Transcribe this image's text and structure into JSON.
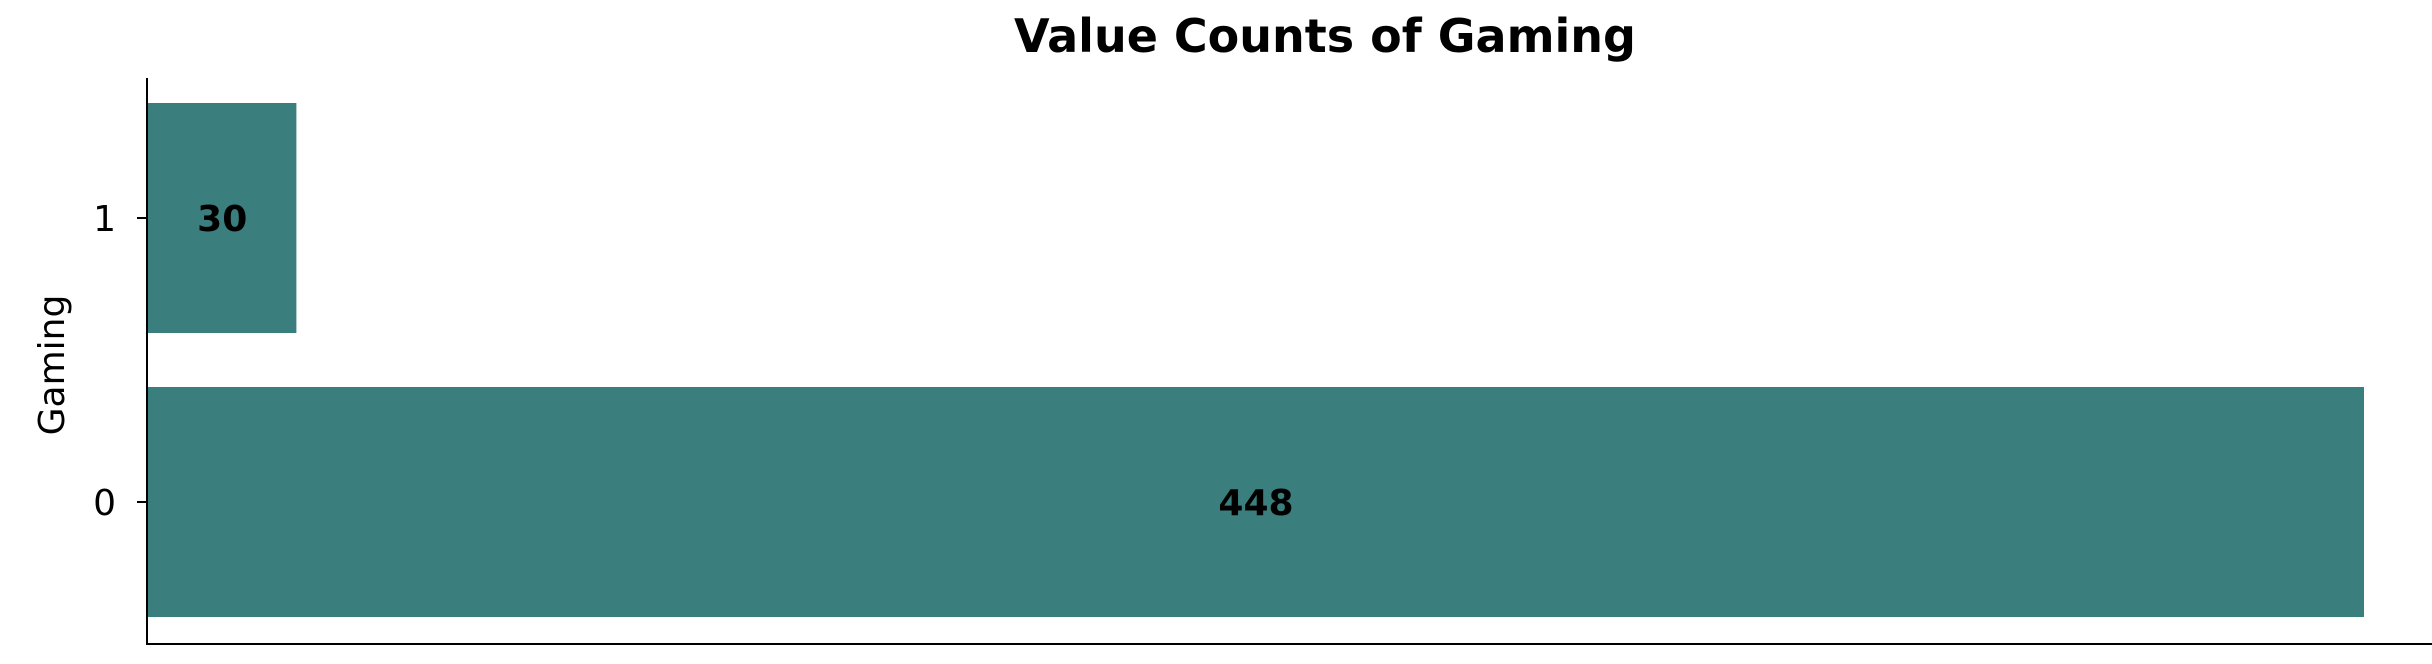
{
  "chart_data": {
    "type": "bar",
    "orientation": "horizontal",
    "title": "Value Counts of Gaming",
    "xlabel": "",
    "ylabel": "Gaming",
    "categories": [
      "0",
      "1"
    ],
    "values": [
      448,
      30
    ],
    "data_labels": [
      "448",
      "30"
    ],
    "xlim": [
      0,
      448
    ],
    "x_ticks_visible": false,
    "grid": false,
    "legend": "none",
    "bar_color": "#3a7e7d",
    "spines": [
      "left",
      "bottom"
    ]
  }
}
